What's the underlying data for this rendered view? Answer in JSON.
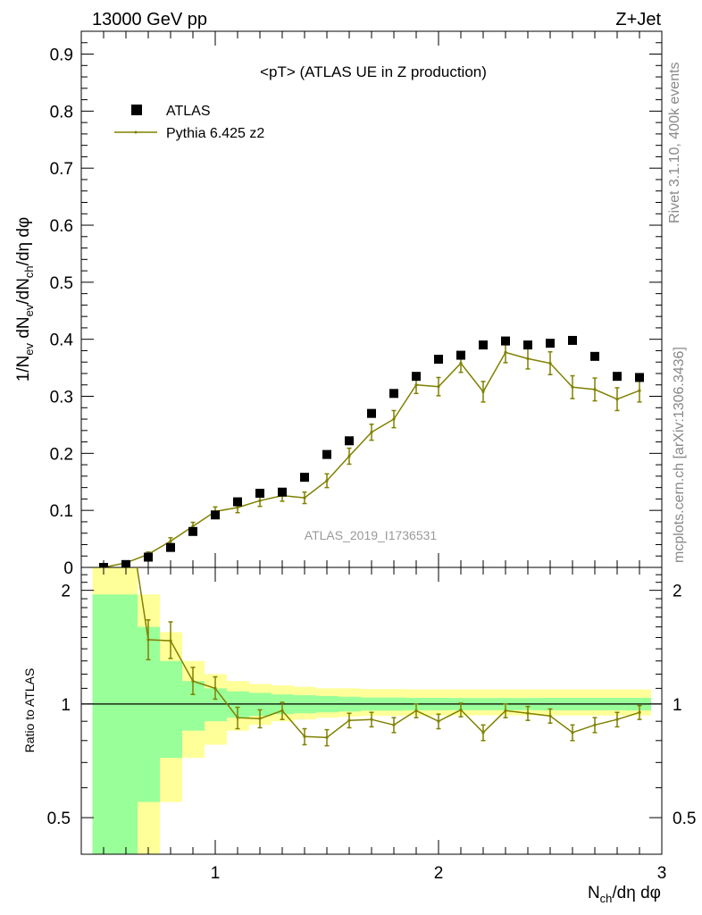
{
  "header": {
    "left": "13000 GeV pp",
    "right": "Z+Jet"
  },
  "side": {
    "rivet": "Rivet 3.1.10,  400k events",
    "site": "mcplots.cern.ch [arXiv:1306.3436]"
  },
  "colors": {
    "mc": "#808000",
    "band_stat": "#99ff99",
    "band_tot": "#ffff99",
    "data": "#000000"
  },
  "chart_data": [
    {
      "type": "scatter",
      "title": "<pT> (ATLAS UE in Z production)",
      "analysis": "ATLAS_2019_I1736531",
      "xlabel": "N_ch/dη dφ",
      "ylabel": "1/N_ev dN_ev/dN_ch/dη dφ",
      "xlim": [
        0.4,
        3.0
      ],
      "ylim": [
        0,
        0.94
      ],
      "xticks": [
        1,
        2,
        3
      ],
      "yticks": [
        0,
        0.1,
        0.2,
        0.3,
        0.4,
        0.5,
        0.6,
        0.7,
        0.8,
        0.9
      ],
      "legend": {
        "placement": "top-left",
        "entries": [
          "ATLAS",
          "Pythia 6.425 z2"
        ]
      },
      "x": [
        0.5,
        0.6,
        0.7,
        0.8,
        0.9,
        1.0,
        1.1,
        1.2,
        1.3,
        1.4,
        1.5,
        1.6,
        1.7,
        1.8,
        1.9,
        2.0,
        2.1,
        2.2,
        2.3,
        2.4,
        2.5,
        2.6,
        2.7,
        2.8,
        2.9
      ],
      "series": [
        {
          "name": "ATLAS",
          "values": [
            0.0,
            0.005,
            0.018,
            0.035,
            0.063,
            0.092,
            0.115,
            0.13,
            0.132,
            0.158,
            0.198,
            0.222,
            0.27,
            0.305,
            0.335,
            0.365,
            0.372,
            0.39,
            0.397,
            0.39,
            0.393,
            0.398,
            0.37,
            0.335,
            0.333
          ]
        },
        {
          "name": "Pythia 6.425 z2",
          "values": [
            0.0,
            0.008,
            0.023,
            0.046,
            0.072,
            0.098,
            0.105,
            0.117,
            0.126,
            0.122,
            0.152,
            0.195,
            0.237,
            0.26,
            0.32,
            0.317,
            0.358,
            0.308,
            0.377,
            0.366,
            0.358,
            0.316,
            0.312,
            0.295,
            0.31
          ],
          "errors": [
            0.001,
            0.002,
            0.004,
            0.006,
            0.007,
            0.008,
            0.009,
            0.01,
            0.01,
            0.01,
            0.012,
            0.014,
            0.014,
            0.015,
            0.015,
            0.016,
            0.016,
            0.018,
            0.018,
            0.018,
            0.02,
            0.02,
            0.02,
            0.02,
            0.02
          ]
        }
      ]
    },
    {
      "type": "line",
      "ylabel": "Ratio to ATLAS",
      "xlabel": "N_ch/dη dφ",
      "xlim": [
        0.4,
        3.0
      ],
      "ylim": [
        0.4,
        2.3
      ],
      "yscale": "log",
      "yticks": [
        0.5,
        1,
        2
      ],
      "bin_edges": [
        0.45,
        0.55,
        0.65,
        0.75,
        0.85,
        0.95,
        1.05,
        1.15,
        1.25,
        1.35,
        1.45,
        1.55,
        1.65,
        1.75,
        1.85,
        1.95,
        2.05,
        2.15,
        2.25,
        2.35,
        2.45,
        2.55,
        2.65,
        2.75,
        2.85,
        2.95
      ],
      "band_stat_low": [
        0.3,
        0.3,
        0.55,
        0.72,
        0.85,
        0.9,
        0.92,
        0.93,
        0.94,
        0.945,
        0.95,
        0.955,
        0.96,
        0.96,
        0.962,
        0.962,
        0.963,
        0.963,
        0.963,
        0.963,
        0.962,
        0.962,
        0.962,
        0.962,
        0.962
      ],
      "band_stat_high": [
        1.95,
        1.95,
        1.6,
        1.3,
        1.15,
        1.1,
        1.08,
        1.07,
        1.06,
        1.055,
        1.05,
        1.045,
        1.04,
        1.04,
        1.038,
        1.038,
        1.037,
        1.037,
        1.037,
        1.037,
        1.038,
        1.038,
        1.038,
        1.038,
        1.038
      ],
      "band_tot_low": [
        0.3,
        0.3,
        0.3,
        0.55,
        0.72,
        0.78,
        0.85,
        0.88,
        0.9,
        0.91,
        0.92,
        0.925,
        0.93,
        0.93,
        0.932,
        0.932,
        0.933,
        0.933,
        0.933,
        0.933,
        0.932,
        0.932,
        0.932,
        0.932,
        0.932
      ],
      "band_tot_high": [
        2.3,
        2.3,
        1.95,
        1.55,
        1.3,
        1.2,
        1.15,
        1.13,
        1.12,
        1.11,
        1.1,
        1.1,
        1.095,
        1.095,
        1.093,
        1.093,
        1.093,
        1.093,
        1.093,
        1.093,
        1.093,
        1.093,
        1.093,
        1.093,
        1.093
      ],
      "x": [
        0.7,
        0.8,
        0.9,
        1.0,
        1.1,
        1.2,
        1.3,
        1.4,
        1.5,
        1.6,
        1.7,
        1.8,
        1.9,
        2.0,
        2.1,
        2.2,
        2.3,
        2.4,
        2.5,
        2.6,
        2.7,
        2.8,
        2.9
      ],
      "series": [
        {
          "name": "Pythia 6.425 z2",
          "values": [
            1.48,
            1.47,
            1.15,
            1.1,
            0.92,
            0.915,
            0.96,
            0.82,
            0.815,
            0.905,
            0.91,
            0.88,
            0.96,
            0.9,
            0.965,
            0.84,
            0.96,
            0.945,
            0.93,
            0.84,
            0.88,
            0.91,
            0.95
          ],
          "err_low": [
            0.17,
            0.15,
            0.09,
            0.07,
            0.06,
            0.05,
            0.05,
            0.04,
            0.04,
            0.04,
            0.04,
            0.04,
            0.04,
            0.04,
            0.04,
            0.04,
            0.04,
            0.04,
            0.04,
            0.04,
            0.04,
            0.04,
            0.04
          ],
          "err_high": [
            0.19,
            0.18,
            0.1,
            0.08,
            0.06,
            0.05,
            0.05,
            0.04,
            0.04,
            0.04,
            0.04,
            0.04,
            0.04,
            0.04,
            0.04,
            0.04,
            0.04,
            0.04,
            0.04,
            0.04,
            0.04,
            0.04,
            0.04
          ]
        }
      ],
      "offscale_start": {
        "x": [
          0.6,
          0.65
        ],
        "values": [
          2.3,
          2.3
        ]
      }
    }
  ]
}
